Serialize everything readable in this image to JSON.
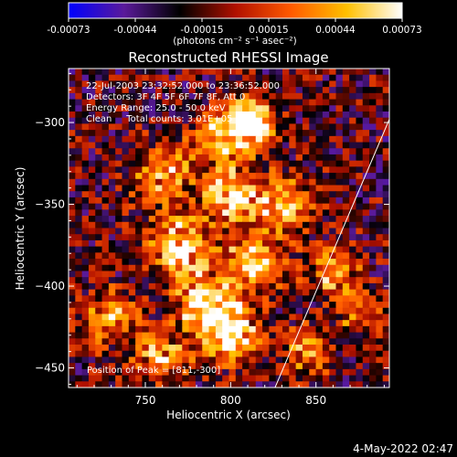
{
  "chart_data": {
    "type": "heatmap",
    "title": "Reconstructed RHESSI Image",
    "xlabel": "Heliocentric X (arcsec)",
    "ylabel": "Heliocentric Y (arcsec)",
    "xlim": [
      705,
      893
    ],
    "ylim": [
      -462,
      -267
    ],
    "x_ticks": [
      750,
      800,
      850
    ],
    "y_ticks": [
      -300,
      -350,
      -400,
      -450
    ],
    "colorbar": {
      "range": [
        -0.00073,
        0.00073
      ],
      "ticks": [
        "-0.00073",
        "-0.00044",
        "-0.00015",
        "0.00015",
        "0.00044",
        "0.00073"
      ],
      "unit_label": "(photons cm⁻² s⁻¹ asec⁻²)",
      "colormap": [
        "#0000ff",
        "#5a1a9a",
        "#000000",
        "#b01000",
        "#ff5a00",
        "#ffc000",
        "#ffffff"
      ]
    },
    "annotations": [
      "22-Jul-2003 23:32:52.000 to 23:36:52.000",
      "Detectors: 3F 4F 5F 6F 7F 8F, Att 0",
      "Energy Range: 25.0 - 50.0 keV",
      "Clean     Total counts: 3.01E+05"
    ],
    "peak_label": "Position of Peak = [811,-300]",
    "peak": {
      "x": 811,
      "y": -300
    },
    "limb_line": {
      "x": [
        826,
        893
      ],
      "y": [
        -462,
        -298
      ]
    },
    "hot_regions": [
      {
        "x": 812,
        "y": -298,
        "sigma": 9,
        "amp": 1.0
      },
      {
        "x": 795,
        "y": -310,
        "sigma": 12,
        "amp": 0.6
      },
      {
        "x": 760,
        "y": -330,
        "sigma": 12,
        "amp": 0.5
      },
      {
        "x": 800,
        "y": -345,
        "sigma": 11,
        "amp": 0.7
      },
      {
        "x": 830,
        "y": -350,
        "sigma": 12,
        "amp": 0.55
      },
      {
        "x": 770,
        "y": -375,
        "sigma": 13,
        "amp": 0.7
      },
      {
        "x": 815,
        "y": -385,
        "sigma": 12,
        "amp": 0.65
      },
      {
        "x": 860,
        "y": -390,
        "sigma": 10,
        "amp": 0.5
      },
      {
        "x": 785,
        "y": -410,
        "sigma": 12,
        "amp": 0.75
      },
      {
        "x": 730,
        "y": -420,
        "sigma": 12,
        "amp": 0.45
      },
      {
        "x": 800,
        "y": -430,
        "sigma": 12,
        "amp": 0.8
      },
      {
        "x": 760,
        "y": -445,
        "sigma": 10,
        "amp": 0.6
      },
      {
        "x": 875,
        "y": -415,
        "sigma": 9,
        "amp": 0.45
      },
      {
        "x": 845,
        "y": -440,
        "sigma": 10,
        "amp": 0.45
      }
    ],
    "background_level": -0.25,
    "grid_cells": [
      48,
      52
    ]
  },
  "footer_date": "4-May-2022 02:47"
}
